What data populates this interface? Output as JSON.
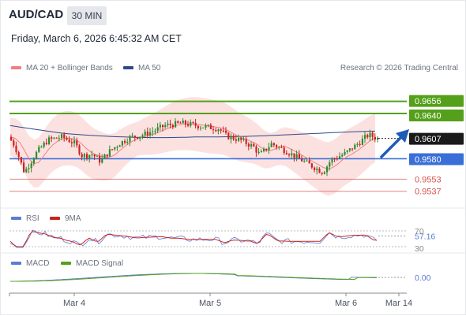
{
  "header": {
    "symbol": "AUD/CAD",
    "timeframe": "30 MIN",
    "datetime": "Friday, March 6, 2026 6:45:32 AM CET"
  },
  "legend": {
    "ma20": "MA 20 + Bollinger Bands",
    "ma50": "MA 50",
    "credit": "Research © 2026 Trading Central"
  },
  "rsi_legend": {
    "rsi": "RSI",
    "ma": "9MA"
  },
  "macd_legend": {
    "macd": "MACD",
    "signal": "MACD Signal"
  },
  "x_labels": [
    "Mar 4",
    "Mar 5",
    "Mar 6",
    "Mar 14"
  ],
  "colors": {
    "candle_up": "#2e8b2e",
    "candle_down": "#cc2222",
    "ma20": "#f08080",
    "ma50": "#2c4a85",
    "bollinger_fill": "#fcdcdc",
    "resistance": "#55a01a",
    "support": "#3a6fd8",
    "target": "#d9534f",
    "arrow": "#1f5bb8",
    "rsi": "#5b7bd5",
    "rsi_ma": "#cc2222",
    "macd": "#5b7bd5",
    "macd_signal": "#55a01a"
  },
  "chart_data": {
    "type": "candlestick",
    "price_axis": {
      "min": 0.952,
      "max": 0.969
    },
    "levels": [
      {
        "label": "0.9656",
        "value": 0.9656,
        "kind": "resistance"
      },
      {
        "label": "0.9640",
        "value": 0.964,
        "kind": "resistance"
      },
      {
        "label": "0.9607",
        "value": 0.9607,
        "kind": "last-price"
      },
      {
        "label": "0.9580",
        "value": 0.958,
        "kind": "support"
      },
      {
        "label": "0.9553",
        "value": 0.9553,
        "kind": "target"
      },
      {
        "label": "0.9537",
        "value": 0.9537,
        "kind": "target"
      }
    ],
    "rsi": {
      "label": "57.16",
      "value": 57.16,
      "ticks": [
        "70",
        "30"
      ]
    },
    "macd": {
      "label": "0.00",
      "value": 0.0
    }
  }
}
